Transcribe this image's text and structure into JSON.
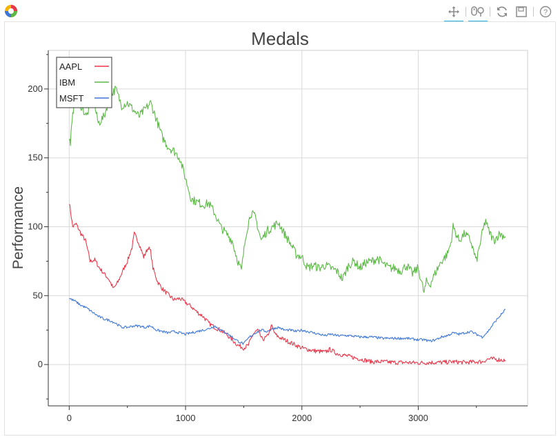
{
  "toolbar": {
    "tools": [
      {
        "name": "pan",
        "icon": "pan-icon",
        "active": true
      },
      {
        "name": "wheel-zoom",
        "icon": "wheel-zoom-icon",
        "active": true
      },
      {
        "name": "reset",
        "icon": "reset-icon",
        "active": false
      },
      {
        "name": "save",
        "icon": "save-icon",
        "active": false
      },
      {
        "name": "help",
        "icon": "help-icon",
        "active": false
      }
    ]
  },
  "chart_data": {
    "type": "line",
    "title": "Medals",
    "ylabel": "Performance",
    "xlabel": "",
    "xlim": [
      -180,
      3940
    ],
    "ylim": [
      -30,
      228
    ],
    "xticks": [
      0,
      1000,
      2000,
      3000
    ],
    "yticks": [
      0,
      50,
      100,
      150,
      200
    ],
    "grid": true,
    "legend": "top-left",
    "series": [
      {
        "name": "AAPL",
        "color": "#e8374a",
        "x": [
          0,
          30,
          60,
          100,
          140,
          180,
          220,
          260,
          300,
          340,
          380,
          420,
          460,
          500,
          540,
          560,
          600,
          640,
          680,
          700,
          720,
          760,
          800,
          860,
          900,
          950,
          1000,
          1050,
          1100,
          1150,
          1200,
          1250,
          1300,
          1350,
          1400,
          1450,
          1500,
          1540,
          1580,
          1620,
          1660,
          1700,
          1740,
          1770,
          1800,
          1850,
          1900,
          1950,
          2000,
          2100,
          2200,
          2240,
          2300,
          2400,
          2500,
          2600,
          2700,
          2800,
          2900,
          3000,
          3100,
          3200,
          3300,
          3400,
          3500,
          3550,
          3600,
          3650,
          3700,
          3750
        ],
        "values": [
          118,
          100,
          102,
          95,
          90,
          75,
          76,
          70,
          66,
          62,
          55,
          60,
          68,
          75,
          85,
          95,
          88,
          78,
          85,
          82,
          70,
          60,
          55,
          50,
          47,
          48,
          45,
          42,
          38,
          35,
          30,
          27,
          25,
          22,
          18,
          14,
          12,
          14,
          22,
          25,
          18,
          20,
          28,
          22,
          20,
          18,
          16,
          14,
          12,
          10,
          9,
          11,
          8,
          6,
          4,
          2,
          2,
          1.5,
          1.5,
          1.2,
          1.5,
          1.5,
          2,
          1.5,
          2,
          2,
          4,
          4,
          3.5,
          3
        ],
        "noise": 1.6
      },
      {
        "name": "IBM",
        "color": "#5cb946",
        "x": [
          0,
          10,
          25,
          40,
          60,
          80,
          100,
          150,
          200,
          250,
          300,
          350,
          400,
          450,
          500,
          550,
          600,
          650,
          700,
          750,
          800,
          850,
          900,
          950,
          1000,
          1050,
          1100,
          1150,
          1200,
          1250,
          1300,
          1350,
          1400,
          1450,
          1480,
          1520,
          1560,
          1600,
          1650,
          1700,
          1750,
          1800,
          1850,
          1900,
          1950,
          2000,
          2050,
          2100,
          2150,
          2200,
          2250,
          2300,
          2350,
          2400,
          2450,
          2500,
          2550,
          2600,
          2650,
          2700,
          2750,
          2800,
          2850,
          2900,
          2950,
          3000,
          3050,
          3070,
          3100,
          3150,
          3200,
          3250,
          3280,
          3300,
          3350,
          3400,
          3450,
          3500,
          3550,
          3580,
          3600,
          3650,
          3700,
          3750
        ],
        "values": [
          162,
          162,
          175,
          190,
          195,
          186,
          188,
          180,
          195,
          175,
          180,
          195,
          200,
          188,
          190,
          185,
          180,
          185,
          190,
          178,
          165,
          158,
          155,
          150,
          135,
          120,
          118,
          116,
          117,
          110,
          100,
          95,
          90,
          75,
          68,
          95,
          110,
          107,
          90,
          97,
          100,
          103,
          95,
          88,
          80,
          78,
          70,
          72,
          70,
          72,
          70,
          68,
          62,
          72,
          75,
          70,
          74,
          75,
          77,
          73,
          70,
          70,
          68,
          72,
          66,
          70,
          52,
          60,
          58,
          67,
          75,
          80,
          88,
          100,
          90,
          95,
          90,
          75,
          95,
          105,
          98,
          90,
          95,
          93
        ],
        "noise": 3.2
      },
      {
        "name": "MSFT",
        "color": "#3f77d8",
        "x": [
          0,
          50,
          100,
          150,
          200,
          250,
          300,
          350,
          400,
          450,
          500,
          550,
          600,
          650,
          700,
          750,
          800,
          850,
          900,
          950,
          1000,
          1050,
          1100,
          1150,
          1200,
          1250,
          1300,
          1350,
          1400,
          1450,
          1500,
          1550,
          1600,
          1650,
          1700,
          1750,
          1800,
          1850,
          1900,
          1950,
          2000,
          2050,
          2100,
          2150,
          2200,
          2250,
          2300,
          2400,
          2500,
          2600,
          2700,
          2800,
          2900,
          3000,
          3050,
          3100,
          3150,
          3200,
          3250,
          3300,
          3350,
          3400,
          3450,
          3500,
          3550,
          3600,
          3650,
          3700,
          3750
        ],
        "values": [
          48,
          46,
          43,
          41,
          38,
          35,
          33,
          32,
          30,
          27,
          27,
          28,
          28,
          27,
          28,
          25,
          24,
          23,
          24,
          23,
          22,
          23,
          24,
          25,
          26,
          28,
          25,
          23,
          20,
          17,
          15,
          20,
          23,
          25,
          24,
          26,
          27,
          25,
          25,
          24,
          25,
          24,
          23,
          22,
          21,
          22,
          21,
          21,
          20,
          20,
          19,
          19,
          19,
          18,
          18,
          17,
          18,
          20,
          21,
          23,
          22,
          23,
          24,
          22,
          20,
          24,
          30,
          35,
          40
        ],
        "noise": 0.9
      }
    ]
  }
}
